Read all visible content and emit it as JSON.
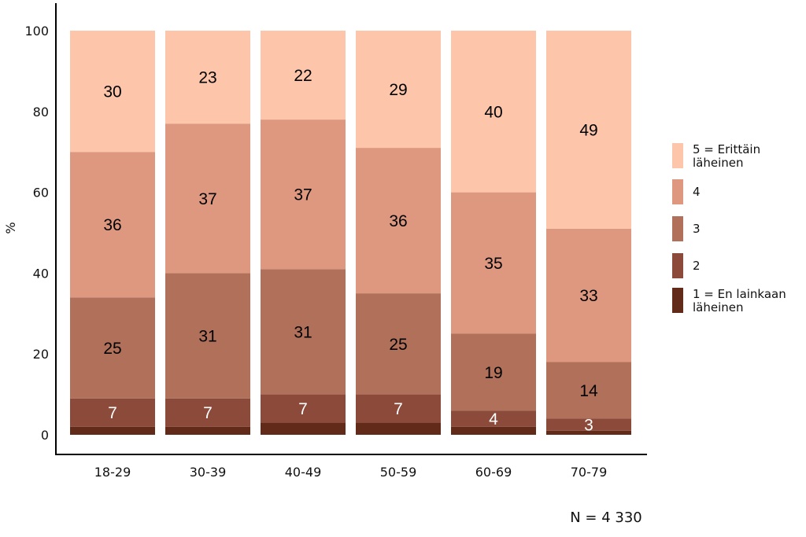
{
  "chart_data": {
    "type": "bar",
    "stacked": true,
    "title": "",
    "xlabel": "",
    "ylabel": "%",
    "ylim": [
      0,
      100
    ],
    "yticks": [
      0,
      20,
      40,
      60,
      80,
      100
    ],
    "grid": false,
    "legend_position": "right",
    "categories": [
      "18-29",
      "30-39",
      "40-49",
      "50-59",
      "60-69",
      "70-79"
    ],
    "series": [
      {
        "name": "1 = En lainkaan läheinen",
        "legend_lines": [
          "1 = En lainkaan",
          "läheinen"
        ],
        "color": "#622A18",
        "values": [
          2,
          2,
          3,
          3,
          2,
          1
        ],
        "labels_shown": false
      },
      {
        "name": "2",
        "legend_lines": [
          "2"
        ],
        "color": "#8B4A3A",
        "values": [
          7,
          7,
          7,
          7,
          4,
          3
        ],
        "labels_shown": true,
        "label_color": "#ffffff"
      },
      {
        "name": "3",
        "legend_lines": [
          "3"
        ],
        "color": "#B0705A",
        "values": [
          25,
          31,
          31,
          25,
          19,
          14
        ],
        "labels_shown": true,
        "label_color": "#000000"
      },
      {
        "name": "4",
        "legend_lines": [
          "4"
        ],
        "color": "#DE9880",
        "values": [
          36,
          37,
          37,
          36,
          35,
          33
        ],
        "labels_shown": true,
        "label_color": "#000000"
      },
      {
        "name": "5 = Erittäin läheinen",
        "legend_lines": [
          "5 = Erittäin",
          "läheinen"
        ],
        "color": "#FDC5A9",
        "values": [
          30,
          23,
          22,
          29,
          40,
          49
        ],
        "labels_shown": true,
        "label_color": "#000000"
      }
    ],
    "annotations": [
      "N = 4 330"
    ]
  }
}
